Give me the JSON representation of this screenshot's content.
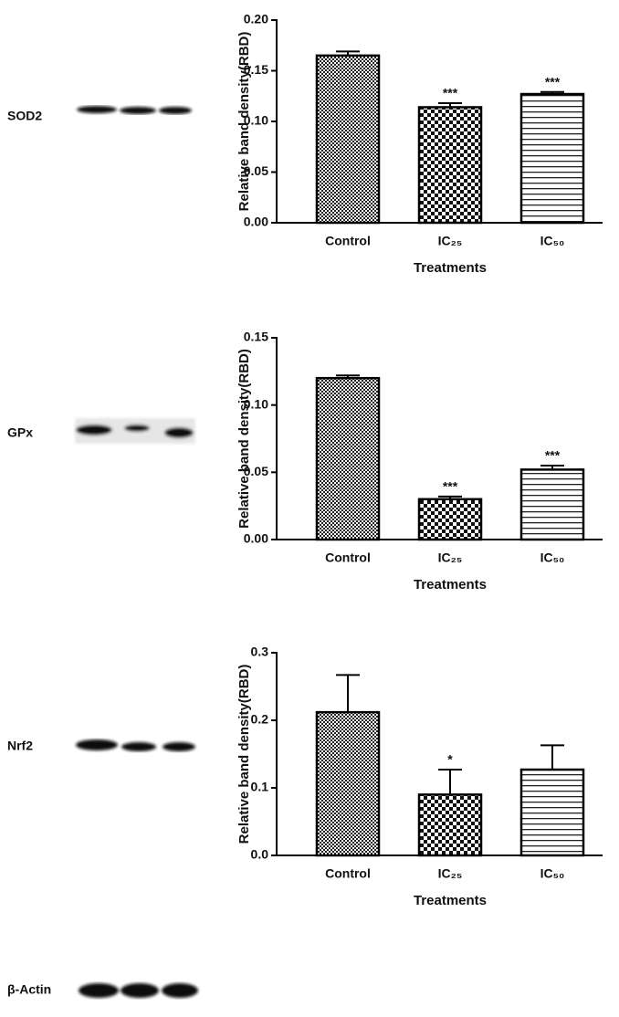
{
  "blots": [
    "SOD2",
    "GPx",
    "Nrf2",
    "β-Actin"
  ],
  "chart_data": [
    {
      "type": "bar",
      "categories": [
        "Control",
        "IC₂₅",
        "IC₅₀"
      ],
      "values": [
        0.165,
        0.114,
        0.127
      ],
      "errors": [
        0.004,
        0.004,
        0.002
      ],
      "annotations": [
        null,
        "***",
        "***"
      ],
      "ylabel": "Relative band density(RBD)",
      "xlabel": "Treatments",
      "ylim": [
        0,
        0.2
      ],
      "yticks": [
        {
          "value": 0,
          "label": "0.00"
        },
        {
          "value": 0.05,
          "label": "0.05"
        },
        {
          "value": 0.1,
          "label": "0.10"
        },
        {
          "value": 0.15,
          "label": "0.15"
        },
        {
          "value": 0.2,
          "label": "0.20"
        }
      ]
    },
    {
      "type": "bar",
      "categories": [
        "Control",
        "IC₂₅",
        "IC₅₀"
      ],
      "values": [
        0.12,
        0.03,
        0.052
      ],
      "errors": [
        0.002,
        0.002,
        0.003
      ],
      "annotations": [
        null,
        "***",
        "***"
      ],
      "ylabel": "Relative band density(RBD)",
      "xlabel": "Treatments",
      "ylim": [
        0,
        0.15
      ],
      "yticks": [
        {
          "value": 0,
          "label": "0.00"
        },
        {
          "value": 0.05,
          "label": "0.05"
        },
        {
          "value": 0.1,
          "label": "0.10"
        },
        {
          "value": 0.15,
          "label": "0.15"
        }
      ]
    },
    {
      "type": "bar",
      "categories": [
        "Control",
        "IC₂₅",
        "IC₅₀"
      ],
      "values": [
        0.212,
        0.09,
        0.127
      ],
      "errors": [
        0.055,
        0.037,
        0.036
      ],
      "annotations": [
        null,
        "*",
        null
      ],
      "ylabel": "Relative band density(RBD)",
      "xlabel": "Treatments",
      "ylim": [
        0,
        0.3
      ],
      "yticks": [
        {
          "value": 0,
          "label": "0.0"
        },
        {
          "value": 0.1,
          "label": "0.1"
        },
        {
          "value": 0.2,
          "label": "0.2"
        },
        {
          "value": 0.3,
          "label": "0.3"
        }
      ]
    }
  ]
}
